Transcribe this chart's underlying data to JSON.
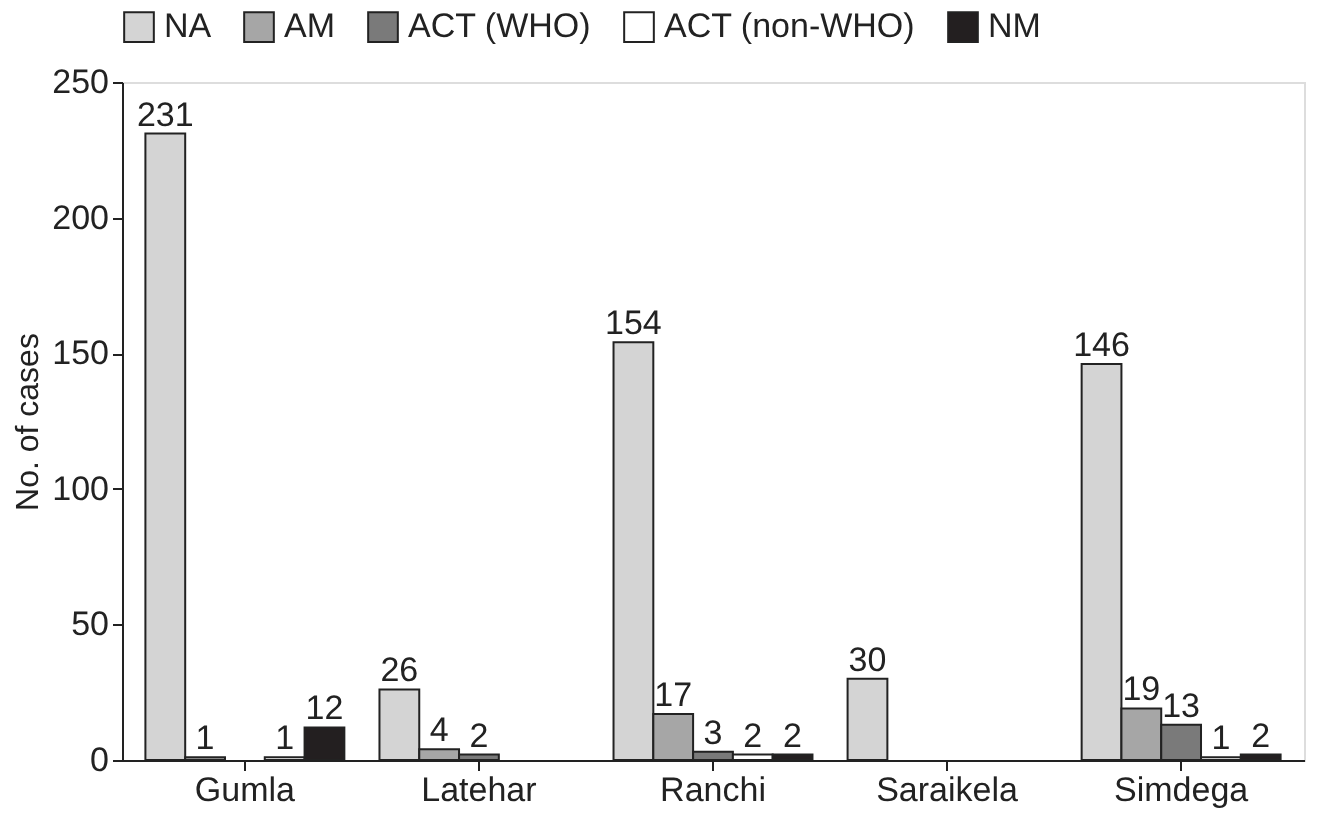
{
  "chart_data": {
    "type": "bar",
    "ylabel": "No. of cases",
    "categories": [
      "Gumla",
      "Latehar",
      "Ranchi",
      "Saraikela",
      "Simdega"
    ],
    "series": [
      {
        "name": "NA",
        "color": "#d4d4d4",
        "values": [
          231,
          26,
          154,
          30,
          146
        ]
      },
      {
        "name": "AM",
        "color": "#a6a6a6",
        "values": [
          1,
          4,
          17,
          null,
          19
        ]
      },
      {
        "name": "ACT (WHO)",
        "color": "#7a7a7a",
        "values": [
          null,
          2,
          3,
          null,
          13
        ]
      },
      {
        "name": "ACT (non-WHO)",
        "color": "#ffffff",
        "values": [
          1,
          null,
          2,
          null,
          1
        ]
      },
      {
        "name": "NM",
        "color": "#231f20",
        "values": [
          12,
          null,
          2,
          null,
          2
        ]
      }
    ],
    "ylim": [
      0,
      250
    ],
    "yticks": [
      0,
      50,
      100,
      150,
      200,
      250
    ],
    "grid": false,
    "legend": "top",
    "data_labels": true
  }
}
